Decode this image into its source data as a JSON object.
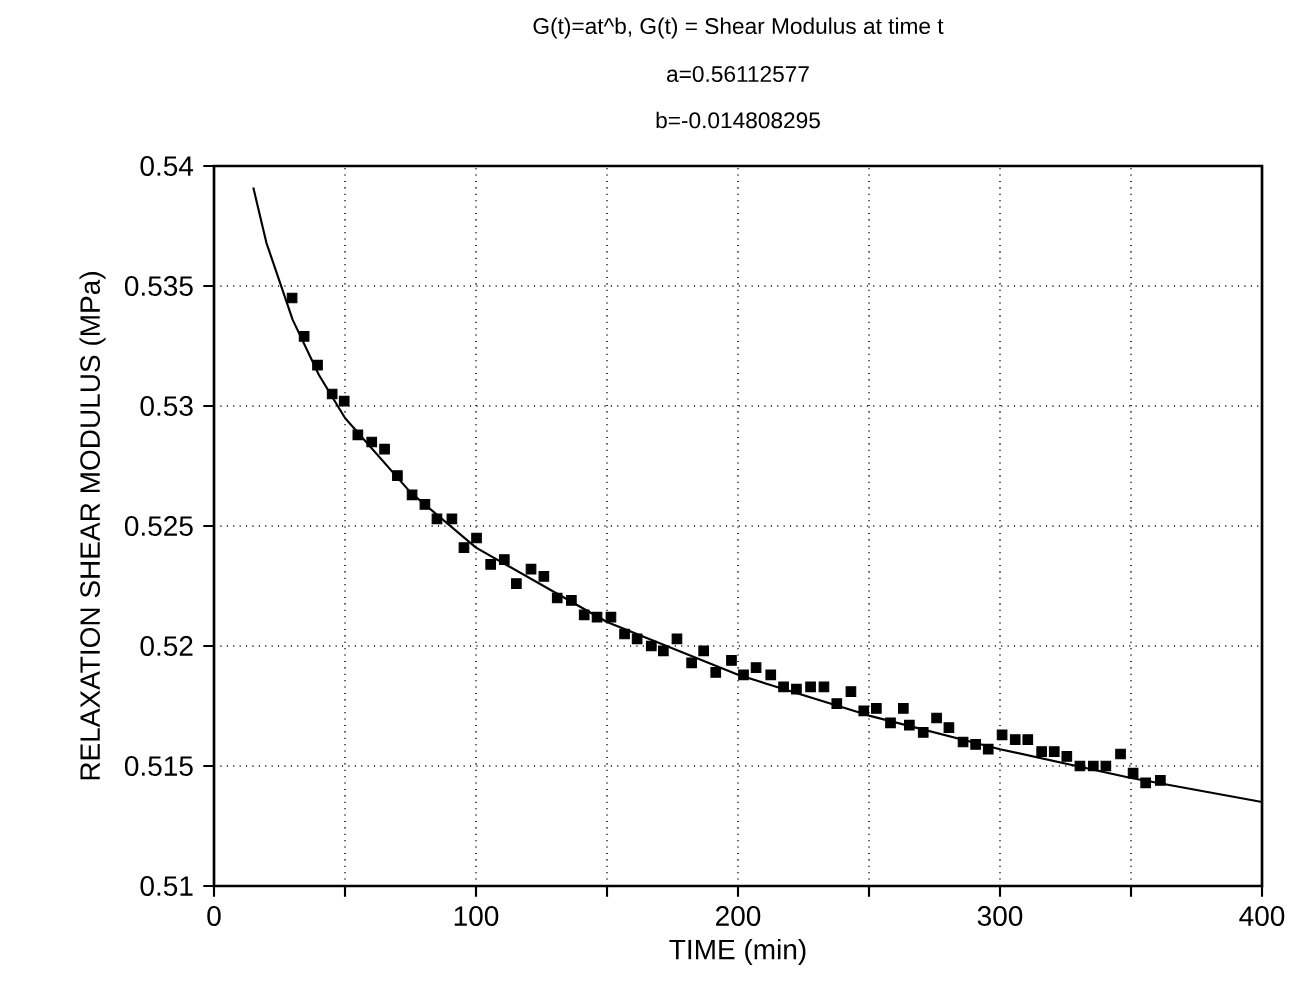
{
  "chart_data": {
    "type": "scatter",
    "title": "G(t)=at^b, G(t) = Shear Modulus at time t",
    "subtitle": "a=0.56112577",
    "annotations": [
      "b=-0.014808295"
    ],
    "xlabel": "TIME (min)",
    "ylabel": "RELAXATION SHEAR MODULUS (MPa)",
    "xlim": [
      0,
      400
    ],
    "ylim": [
      0.51,
      0.54
    ],
    "xticks": [
      0,
      {
        "value": 50,
        "label": null
      },
      100,
      {
        "value": 150,
        "label": null
      },
      200,
      {
        "value": 250,
        "label": null
      },
      300,
      {
        "value": 350,
        "label": null
      },
      400
    ],
    "yticks": [
      0.51,
      0.515,
      0.52,
      0.525,
      0.53,
      0.535,
      0.54
    ],
    "grid": true,
    "series": [
      {
        "color": "#000000",
        "marker": "square",
        "x": [
          29.8,
          34.4,
          39.5,
          45.1,
          49.7,
          54.9,
          60.2,
          65.1,
          70,
          75.6,
          80.5,
          85.1,
          90.8,
          95.4,
          100.2,
          105.6,
          110.8,
          115.4,
          121,
          125.9,
          131,
          136.4,
          141.3,
          146.2,
          151.5,
          156.7,
          161.5,
          166.9,
          171.5,
          176.7,
          182.3,
          186.9,
          191.5,
          197.5,
          202.1,
          206.9,
          212.5,
          217.4,
          222.3,
          227.7,
          232.8,
          237.7,
          243.1,
          248,
          252.8,
          258.2,
          263.1,
          265.4,
          270.7,
          275.8,
          280.5,
          285.9,
          290.7,
          295.5,
          300.8,
          305.8,
          310.6,
          315.9,
          320.7,
          325.5,
          330.5,
          335.6,
          340.4,
          346,
          350.8,
          355.6,
          361.2
        ],
        "values": [
          0.5345,
          0.5329,
          0.5317,
          0.5305,
          0.5302,
          0.5288,
          0.5285,
          0.5282,
          0.5271,
          0.5263,
          0.5259,
          0.5253,
          0.5253,
          0.5241,
          0.5245,
          0.5234,
          0.5236,
          0.5226,
          0.5232,
          0.5229,
          0.522,
          0.5219,
          0.5213,
          0.5212,
          0.5212,
          0.5205,
          0.5203,
          0.52,
          0.5198,
          0.5203,
          0.5193,
          0.5198,
          0.5189,
          0.5194,
          0.5188,
          0.5191,
          0.5188,
          0.5183,
          0.5182,
          0.5183,
          0.5183,
          0.5176,
          0.5181,
          0.5173,
          0.5174,
          0.5168,
          0.5174,
          0.5167,
          0.5164,
          0.517,
          0.5166,
          0.516,
          0.5159,
          0.5157,
          0.5163,
          0.5161,
          0.5161,
          0.5156,
          0.5156,
          0.5154,
          0.515,
          0.515,
          0.515,
          0.5155,
          0.5147,
          0.5143,
          0.5144
        ]
      },
      {
        "type": "line",
        "color": "#000000",
        "marker": "none",
        "line_style": "solid",
        "x": [
          15,
          20,
          30,
          40,
          50,
          75,
          100,
          150,
          200,
          250,
          300,
          350,
          400
        ],
        "values": [
          0.5391,
          0.5368,
          0.5336,
          0.5313,
          0.5295,
          0.5264,
          0.5241,
          0.521,
          0.5188,
          0.5171,
          0.5157,
          0.5145,
          0.5135
        ]
      }
    ]
  }
}
